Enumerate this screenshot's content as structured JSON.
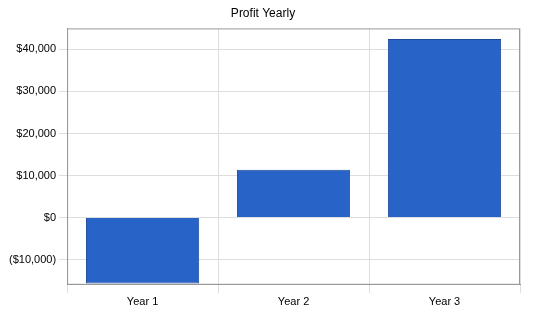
{
  "chart_data": {
    "type": "bar",
    "title": "Profit Yearly",
    "categories": [
      "Year 1",
      "Year 2",
      "Year 3"
    ],
    "values": [
      -15700,
      11400,
      42500
    ],
    "color": "#2864c8",
    "ylim": [
      -16000,
      45000
    ],
    "yticks": [
      {
        "value": -10000,
        "label": "($10,000)"
      },
      {
        "value": 0,
        "label": "$0"
      },
      {
        "value": 10000,
        "label": "$10,000"
      },
      {
        "value": 20000,
        "label": "$20,000"
      },
      {
        "value": 30000,
        "label": "$30,000"
      },
      {
        "value": 40000,
        "label": "$40,000"
      }
    ],
    "grid": true
  }
}
